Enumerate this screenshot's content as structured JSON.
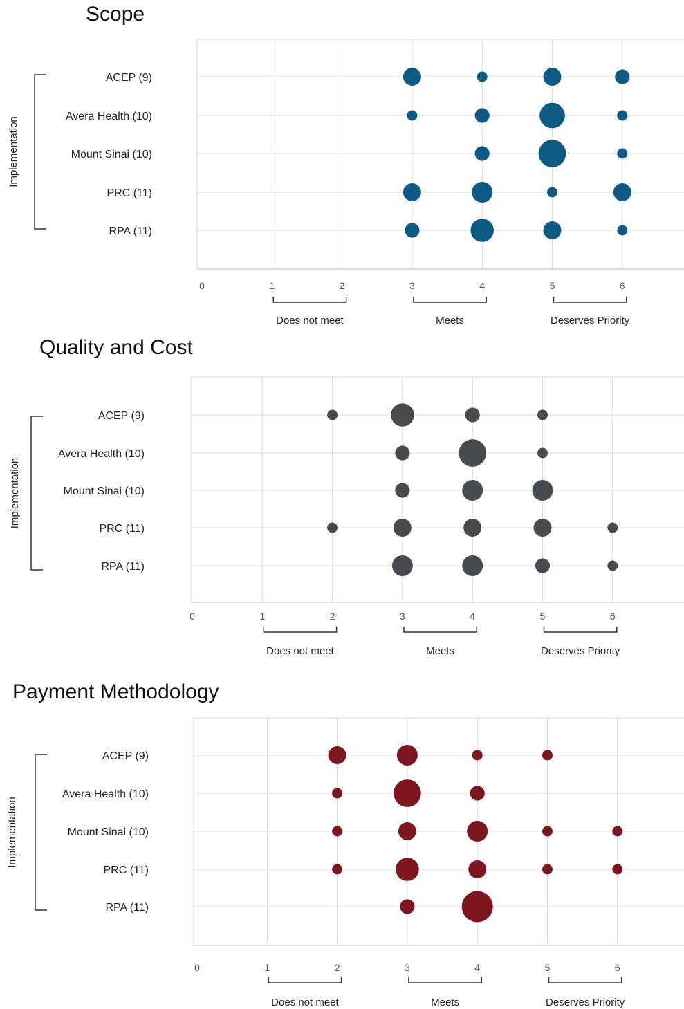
{
  "chart_data": [
    {
      "type": "scatter",
      "title": "Scope",
      "group_label": "Implementation",
      "categories": [
        "ACEP (9)",
        "Avera Health (10)",
        "Mount Sinai (10)",
        "PRC (11)",
        "RPA (11)"
      ],
      "xticks": [
        "0",
        "1",
        "2",
        "3",
        "4",
        "5",
        "6"
      ],
      "xlim": [
        0,
        7
      ],
      "x_groups": [
        {
          "label": "Does not meet",
          "range": [
            1,
            2
          ]
        },
        {
          "label": "Meets",
          "range": [
            3,
            4
          ]
        },
        {
          "label": "Deserves Priority",
          "range": [
            5,
            6
          ]
        }
      ],
      "color": "#0d5a84",
      "points": [
        {
          "category": "ACEP (9)",
          "x": 3,
          "count": 3
        },
        {
          "category": "ACEP (9)",
          "x": 4,
          "count": 1
        },
        {
          "category": "ACEP (9)",
          "x": 5,
          "count": 3
        },
        {
          "category": "ACEP (9)",
          "x": 6,
          "count": 2
        },
        {
          "category": "Avera Health (10)",
          "x": 3,
          "count": 1
        },
        {
          "category": "Avera Health (10)",
          "x": 4,
          "count": 2
        },
        {
          "category": "Avera Health (10)",
          "x": 5,
          "count": 6
        },
        {
          "category": "Avera Health (10)",
          "x": 6,
          "count": 1
        },
        {
          "category": "Mount Sinai (10)",
          "x": 4,
          "count": 2
        },
        {
          "category": "Mount Sinai (10)",
          "x": 5,
          "count": 7
        },
        {
          "category": "Mount Sinai (10)",
          "x": 6,
          "count": 1
        },
        {
          "category": "PRC (11)",
          "x": 3,
          "count": 3
        },
        {
          "category": "PRC (11)",
          "x": 4,
          "count": 4
        },
        {
          "category": "PRC (11)",
          "x": 5,
          "count": 1
        },
        {
          "category": "PRC (11)",
          "x": 6,
          "count": 3
        },
        {
          "category": "RPA (11)",
          "x": 3,
          "count": 2
        },
        {
          "category": "RPA (11)",
          "x": 4,
          "count": 5
        },
        {
          "category": "RPA (11)",
          "x": 5,
          "count": 3
        },
        {
          "category": "RPA (11)",
          "x": 6,
          "count": 1
        }
      ]
    },
    {
      "type": "scatter",
      "title": "Quality and Cost",
      "group_label": "Implementation",
      "categories": [
        "ACEP (9)",
        "Avera Health (10)",
        "Mount Sinai (10)",
        "PRC (11)",
        "RPA (11)"
      ],
      "xticks": [
        "0",
        "1",
        "2",
        "3",
        "4",
        "5",
        "6"
      ],
      "xlim": [
        0,
        7
      ],
      "x_groups": [
        {
          "label": "Does not meet",
          "range": [
            1,
            2
          ]
        },
        {
          "label": "Meets",
          "range": [
            3,
            4
          ]
        },
        {
          "label": "Deserves Priority",
          "range": [
            5,
            6
          ]
        }
      ],
      "color": "#474a4f",
      "points": [
        {
          "category": "ACEP (9)",
          "x": 2,
          "count": 1
        },
        {
          "category": "ACEP (9)",
          "x": 3,
          "count": 5
        },
        {
          "category": "ACEP (9)",
          "x": 4,
          "count": 2
        },
        {
          "category": "ACEP (9)",
          "x": 5,
          "count": 1
        },
        {
          "category": "Avera Health (10)",
          "x": 3,
          "count": 2
        },
        {
          "category": "Avera Health (10)",
          "x": 4,
          "count": 7
        },
        {
          "category": "Avera Health (10)",
          "x": 5,
          "count": 1
        },
        {
          "category": "Mount Sinai (10)",
          "x": 3,
          "count": 2
        },
        {
          "category": "Mount Sinai (10)",
          "x": 4,
          "count": 4
        },
        {
          "category": "Mount Sinai (10)",
          "x": 5,
          "count": 4
        },
        {
          "category": "PRC (11)",
          "x": 2,
          "count": 1
        },
        {
          "category": "PRC (11)",
          "x": 3,
          "count": 3
        },
        {
          "category": "PRC (11)",
          "x": 4,
          "count": 3
        },
        {
          "category": "PRC (11)",
          "x": 5,
          "count": 3
        },
        {
          "category": "PRC (11)",
          "x": 6,
          "count": 1
        },
        {
          "category": "RPA (11)",
          "x": 3,
          "count": 4
        },
        {
          "category": "RPA (11)",
          "x": 4,
          "count": 4
        },
        {
          "category": "RPA (11)",
          "x": 5,
          "count": 2
        },
        {
          "category": "RPA (11)",
          "x": 6,
          "count": 1
        }
      ]
    },
    {
      "type": "scatter",
      "title": "Payment Methodology",
      "group_label": "Implementation",
      "categories": [
        "ACEP (9)",
        "Avera Health (10)",
        "Mount Sinai (10)",
        "PRC (11)",
        "RPA (11)"
      ],
      "xticks": [
        "0",
        "1",
        "2",
        "3",
        "4",
        "5",
        "6"
      ],
      "xlim": [
        0,
        7
      ],
      "x_groups": [
        {
          "label": "Does not meet",
          "range": [
            1,
            2
          ]
        },
        {
          "label": "Meets",
          "range": [
            3,
            4
          ]
        },
        {
          "label": "Deserves Priority",
          "range": [
            5,
            6
          ]
        }
      ],
      "color": "#7e1620",
      "points": [
        {
          "category": "ACEP (9)",
          "x": 2,
          "count": 3
        },
        {
          "category": "ACEP (9)",
          "x": 3,
          "count": 4
        },
        {
          "category": "ACEP (9)",
          "x": 4,
          "count": 1
        },
        {
          "category": "ACEP (9)",
          "x": 5,
          "count": 1
        },
        {
          "category": "Avera Health (10)",
          "x": 2,
          "count": 1
        },
        {
          "category": "Avera Health (10)",
          "x": 3,
          "count": 7
        },
        {
          "category": "Avera Health (10)",
          "x": 4,
          "count": 2
        },
        {
          "category": "Mount Sinai (10)",
          "x": 2,
          "count": 1
        },
        {
          "category": "Mount Sinai (10)",
          "x": 3,
          "count": 3
        },
        {
          "category": "Mount Sinai (10)",
          "x": 4,
          "count": 4
        },
        {
          "category": "Mount Sinai (10)",
          "x": 5,
          "count": 1
        },
        {
          "category": "Mount Sinai (10)",
          "x": 6,
          "count": 1
        },
        {
          "category": "PRC (11)",
          "x": 2,
          "count": 1
        },
        {
          "category": "PRC (11)",
          "x": 3,
          "count": 5
        },
        {
          "category": "PRC (11)",
          "x": 4,
          "count": 3
        },
        {
          "category": "PRC (11)",
          "x": 5,
          "count": 1
        },
        {
          "category": "PRC (11)",
          "x": 6,
          "count": 1
        },
        {
          "category": "RPA (11)",
          "x": 3,
          "count": 2
        },
        {
          "category": "RPA (11)",
          "x": 4,
          "count": 9
        }
      ]
    }
  ]
}
